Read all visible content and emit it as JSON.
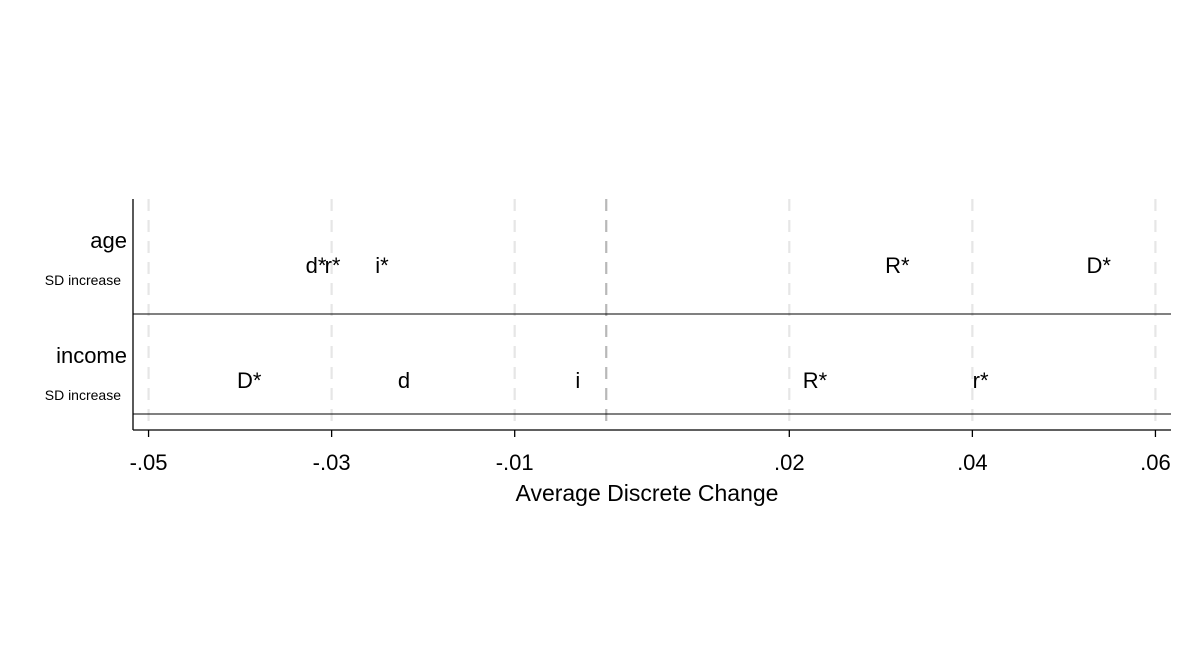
{
  "chart_data": {
    "type": "scatter",
    "title": "",
    "xlabel": "Average Discrete Change",
    "ylabel": "",
    "xlim": [
      -0.0517,
      0.0617
    ],
    "x_ticks": [
      {
        "value": -0.05,
        "label": "-.05"
      },
      {
        "value": -0.03,
        "label": "-.03"
      },
      {
        "value": -0.01,
        "label": "-.01"
      },
      {
        "value": 0.02,
        "label": ".02"
      },
      {
        "value": 0.04,
        "label": ".04"
      },
      {
        "value": 0.06,
        "label": ".06"
      }
    ],
    "zero_line": 0,
    "grid": true,
    "variables": [
      {
        "name": "age",
        "sublabel": "SD increase",
        "points": [
          {
            "label": "d*",
            "x": -0.0317
          },
          {
            "label": "r*",
            "x": -0.0299
          },
          {
            "label": "i*",
            "x": -0.0245
          },
          {
            "label": "R*",
            "x": 0.0318
          },
          {
            "label": "D*",
            "x": 0.0538
          }
        ]
      },
      {
        "name": "income",
        "sublabel": "SD increase",
        "points": [
          {
            "label": "D*",
            "x": -0.039
          },
          {
            "label": "d",
            "x": -0.0221
          },
          {
            "label": "i",
            "x": -0.0031
          },
          {
            "label": "R*",
            "x": 0.0228
          },
          {
            "label": "r*",
            "x": 0.0409
          }
        ]
      }
    ]
  }
}
